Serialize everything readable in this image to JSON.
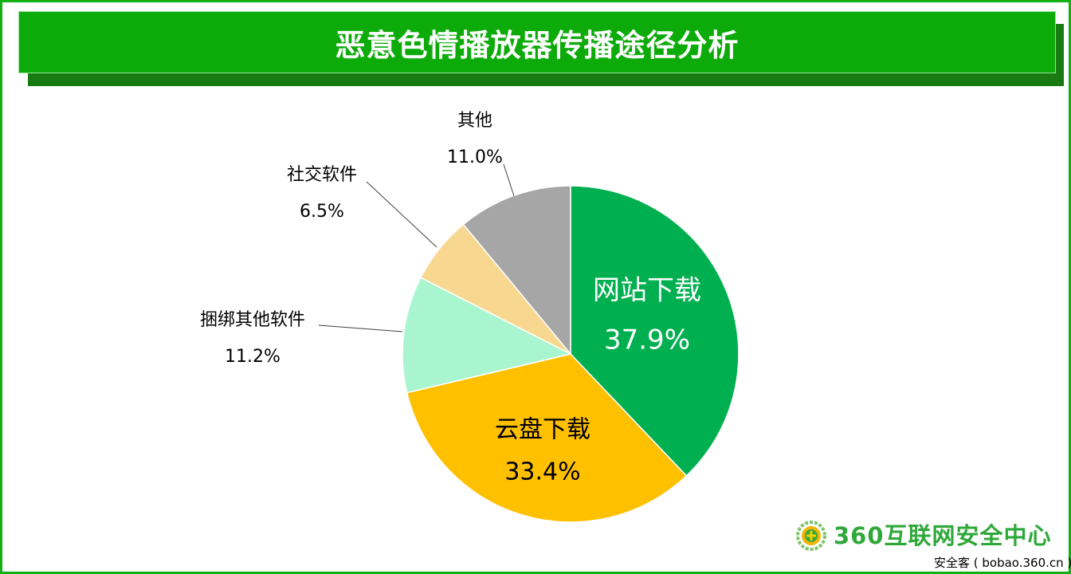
{
  "chart_data": {
    "type": "pie",
    "title": "恶意色情播放器传播途径分析",
    "start_angle": "top",
    "direction": "clockwise",
    "slices": [
      {
        "label": "网站下载",
        "value": 37.9,
        "display": "37.9%",
        "color": "#00B050",
        "text_color": "#ffffff",
        "label_position": "inside"
      },
      {
        "label": "云盘下载",
        "value": 33.4,
        "display": "33.4%",
        "color": "#FFC000",
        "text_color": "#000000",
        "label_position": "inside"
      },
      {
        "label": "捆绑其他软件",
        "value": 11.2,
        "display": "11.2%",
        "color": "#A9F5D0",
        "text_color": "#000000",
        "label_position": "outside"
      },
      {
        "label": "社交软件",
        "value": 6.5,
        "display": "6.5%",
        "color": "#F8D891",
        "text_color": "#000000",
        "label_position": "outside"
      },
      {
        "label": "其他",
        "value": 11.0,
        "display": "11.0%",
        "color": "#A6A6A6",
        "text_color": "#000000",
        "label_position": "outside"
      }
    ]
  },
  "footer": {
    "logo_text": "360互联网安全中心",
    "source": "安全客 ( bobao.360.cn )"
  }
}
